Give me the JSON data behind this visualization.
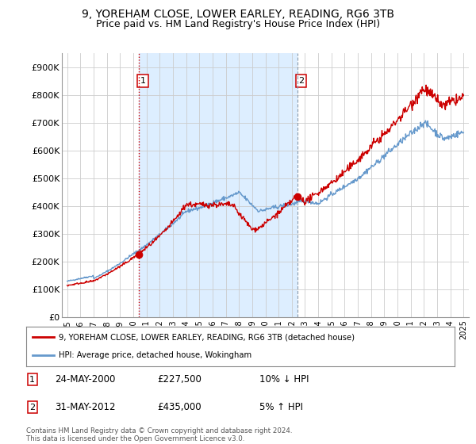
{
  "title": "9, YOREHAM CLOSE, LOWER EARLEY, READING, RG6 3TB",
  "subtitle": "Price paid vs. HM Land Registry's House Price Index (HPI)",
  "title_fontsize": 10,
  "subtitle_fontsize": 9,
  "ylim": [
    0,
    950000
  ],
  "yticks": [
    0,
    100000,
    200000,
    300000,
    400000,
    500000,
    600000,
    700000,
    800000,
    900000
  ],
  "ytick_labels": [
    "£0",
    "£100K",
    "£200K",
    "£300K",
    "£400K",
    "£500K",
    "£600K",
    "£700K",
    "£800K",
    "£900K"
  ],
  "house_color": "#cc0000",
  "hpi_color": "#6699cc",
  "vline1_color": "#cc0000",
  "vline2_color": "#8899aa",
  "vline1_style": ":",
  "vline2_style": "--",
  "shade_color": "#ddeeff",
  "marker1_date": 2000.42,
  "marker2_date": 2012.42,
  "marker1_value": 227500,
  "marker2_value": 435000,
  "legend_house": "9, YOREHAM CLOSE, LOWER EARLEY, READING, RG6 3TB (detached house)",
  "legend_hpi": "HPI: Average price, detached house, Wokingham",
  "table_rows": [
    [
      "1",
      "24-MAY-2000",
      "£227,500",
      "10% ↓ HPI"
    ],
    [
      "2",
      "31-MAY-2012",
      "£435,000",
      "5% ↑ HPI"
    ]
  ],
  "footnote": "Contains HM Land Registry data © Crown copyright and database right 2024.\nThis data is licensed under the Open Government Licence v3.0.",
  "bg_color": "#ffffff",
  "grid_color": "#cccccc",
  "xtick_years": [
    1995,
    1996,
    1997,
    1998,
    1999,
    2000,
    2001,
    2002,
    2003,
    2004,
    2005,
    2006,
    2007,
    2008,
    2009,
    2010,
    2011,
    2012,
    2013,
    2014,
    2015,
    2016,
    2017,
    2018,
    2019,
    2020,
    2021,
    2022,
    2023,
    2024,
    2025
  ]
}
